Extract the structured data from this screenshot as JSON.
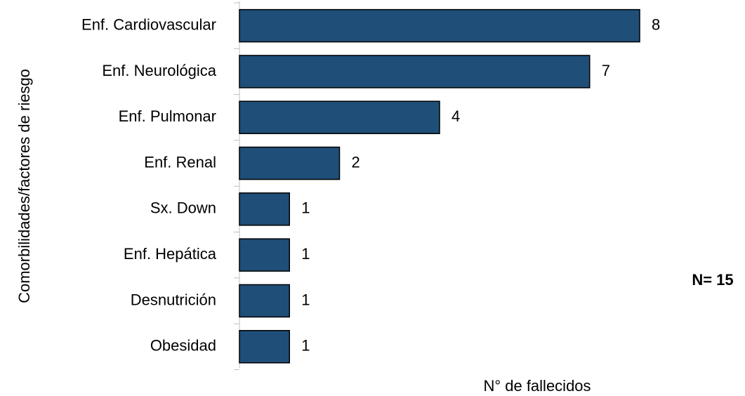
{
  "chart_data": {
    "type": "bar",
    "orientation": "horizontal",
    "categories": [
      "Enf. Cardiovascular",
      "Enf. Neurológica",
      "Enf. Pulmonar",
      "Enf. Renal",
      "Sx. Down",
      "Enf. Hepática",
      "Desnutrición",
      "Obesidad"
    ],
    "values": [
      8,
      7,
      4,
      2,
      1,
      1,
      1,
      1
    ],
    "color": "#1f4e79",
    "x_label": "N° de fallecidos",
    "y_label": "Comorbilidades/factores de riesgo",
    "annotation": "N= 15"
  }
}
